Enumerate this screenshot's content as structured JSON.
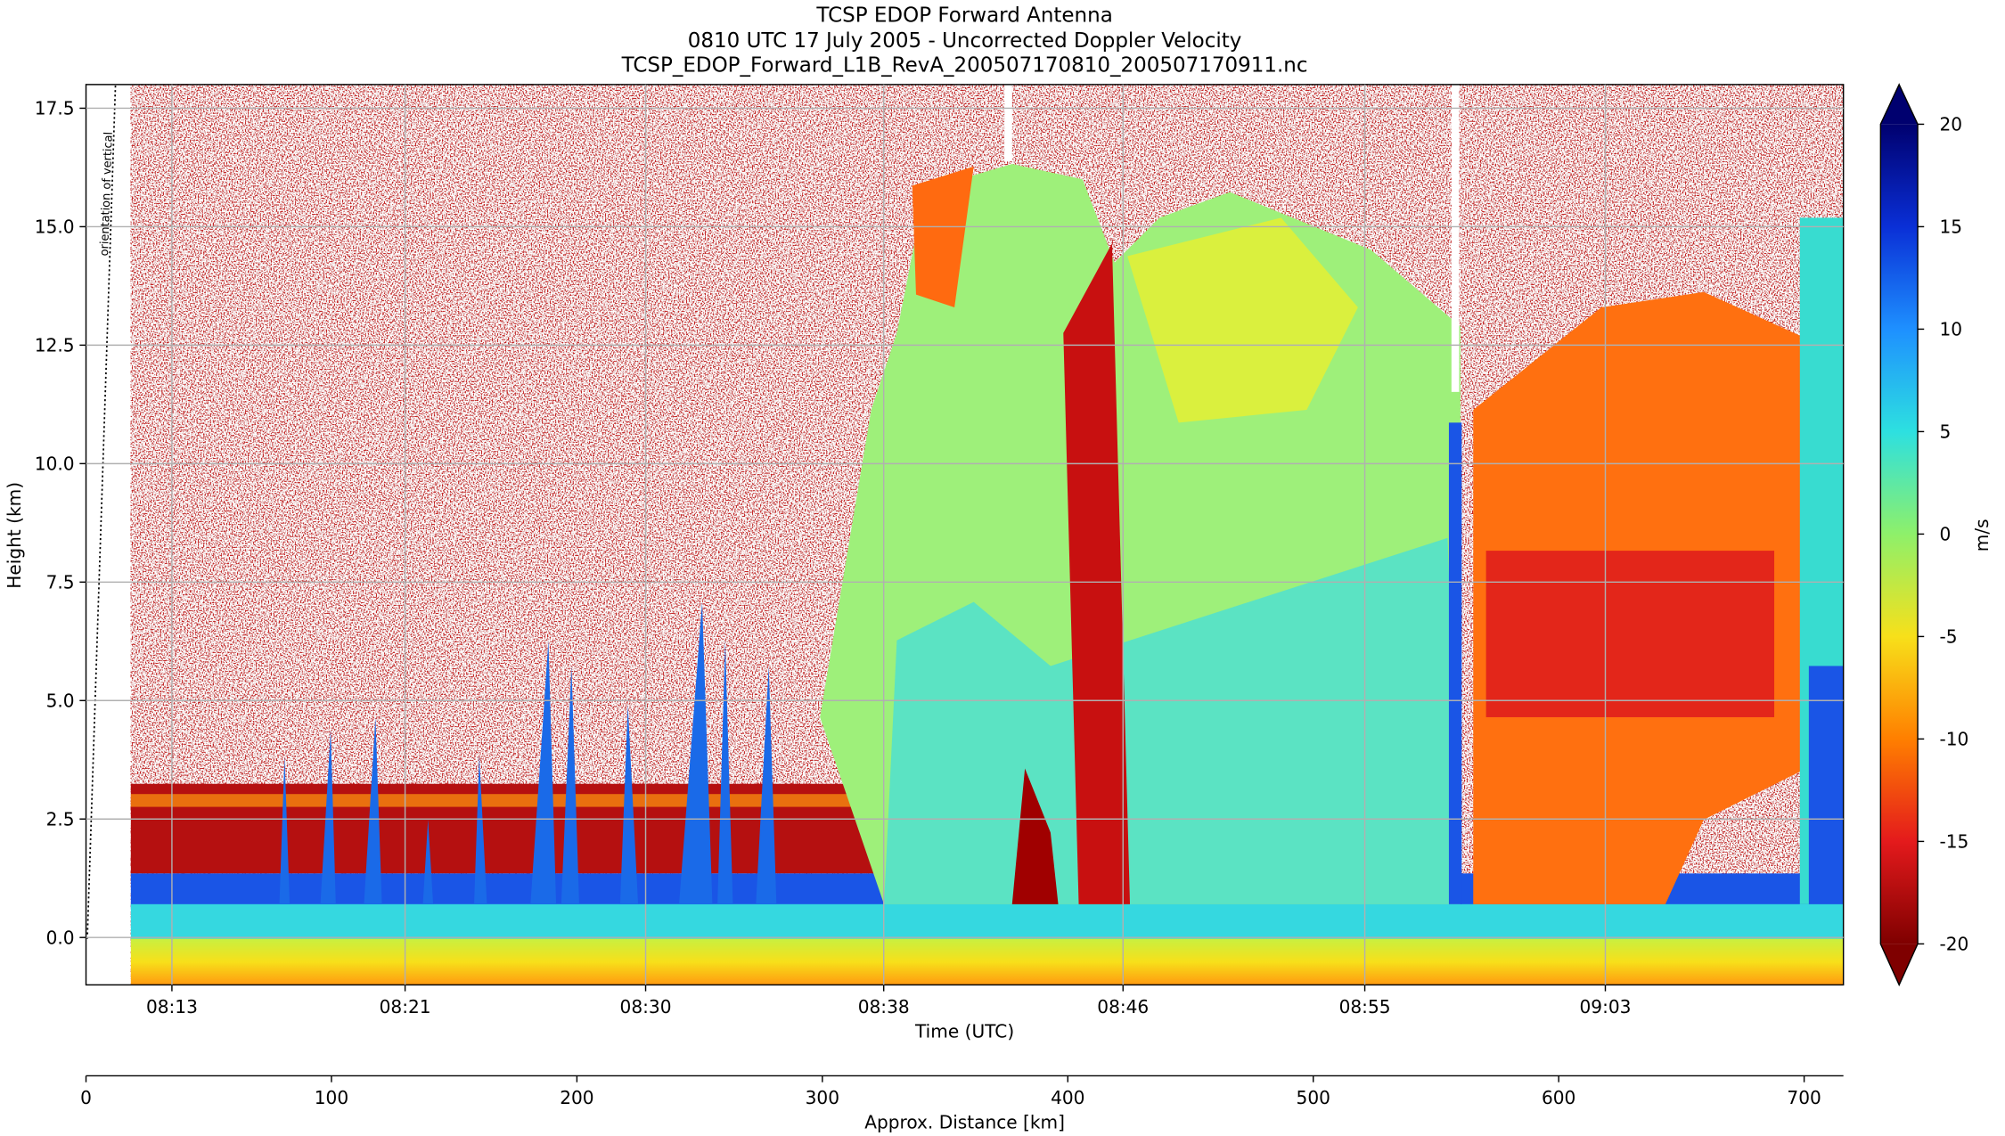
{
  "chart_data": {
    "type": "radar_curtain",
    "title": [
      "TCSP EDOP Forward Antenna",
      "0810 UTC 17 July 2005 - Uncorrected Doppler Velocity",
      "TCSP_EDOP_Forward_L1B_RevA_200507170810_200507170911.nc"
    ],
    "ylabel": "Height (km)",
    "xlabel": "Time (UTC)",
    "x2label": "Approx. Distance [km]",
    "annotation": "orientation of vertical",
    "ylim": [
      -1,
      18
    ],
    "yticks": [
      {
        "value": 0,
        "label": "0.0"
      },
      2.5,
      {
        "value": 5,
        "label": "5.0"
      },
      7.5,
      {
        "value": 10,
        "label": "10.0"
      },
      12.5,
      {
        "value": 15,
        "label": "15.0"
      },
      17.5
    ],
    "xlim": [
      0,
      716
    ],
    "xticks": [
      {
        "value": 35,
        "label": "08:13"
      },
      {
        "value": 130,
        "label": "08:21"
      },
      {
        "value": 228,
        "label": "08:30"
      },
      {
        "value": 325,
        "label": "08:38"
      },
      {
        "value": 422.5,
        "label": "08:46"
      },
      {
        "value": 521,
        "label": "08:55"
      },
      {
        "value": 619,
        "label": "09:03"
      }
    ],
    "x2ticks": [
      0,
      100,
      200,
      300,
      400,
      500,
      600,
      700
    ],
    "grid": true,
    "colorbar": {
      "label": "m/s",
      "clim": [
        -20,
        20
      ],
      "ticks": [
        -20,
        -15,
        -10,
        -5,
        0,
        5,
        10,
        15,
        20
      ],
      "colors": [
        "#7f0000",
        "#e41a1c",
        "#ff7f00",
        "#f7e01a",
        "#8ef06a",
        "#2de0e0",
        "#1e90ff",
        "#0a2fd6",
        "#00006f"
      ]
    }
  }
}
